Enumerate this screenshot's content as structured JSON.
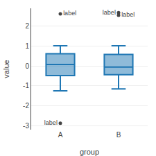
{
  "chart_data": {
    "type": "box",
    "title": "",
    "xlabel": "group",
    "ylabel": "value",
    "categories": [
      "A",
      "B"
    ],
    "q1": [
      -0.48,
      -0.44
    ],
    "median": [
      0.08,
      -0.05
    ],
    "q3": [
      0.62,
      0.58
    ],
    "whisker_low": [
      -1.25,
      -1.15
    ],
    "whisker_high": [
      1.02,
      1.02
    ],
    "outliers": [
      [
        2.62,
        -2.88
      ],
      [
        2.55,
        2.68
      ]
    ],
    "outlier_labels": [
      [
        "label",
        "label"
      ],
      [
        "label",
        "label"
      ]
    ],
    "ylim": [
      -3.2,
      2.9
    ],
    "yticks": [
      -3,
      -2,
      -1,
      0,
      1,
      2
    ],
    "grid": true
  }
}
